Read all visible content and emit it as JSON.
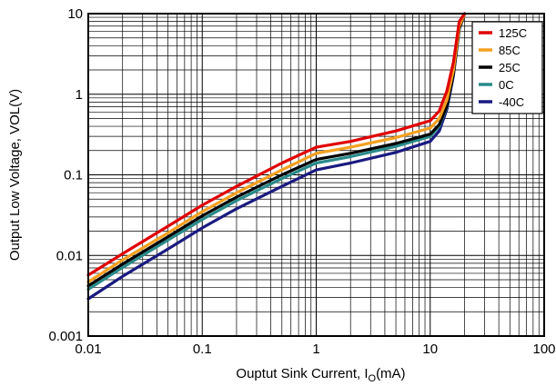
{
  "chart_data": {
    "type": "line",
    "title": "",
    "xlabel_prefix": "Ouptut Sink Current, I",
    "xlabel_sub": "O",
    "xlabel_suffix": "(mA)",
    "ylabel": "Output Low Voltage, VOL(V)",
    "x_scale": "log",
    "y_scale": "log",
    "xlim": [
      0.01,
      100
    ],
    "ylim": [
      0.001,
      10
    ],
    "grid": true,
    "legend_position": "top-right",
    "x_tick_labels": [
      "0.01",
      "0.1",
      "1",
      "10",
      "100"
    ],
    "y_tick_labels": [
      "0.001",
      "0.01",
      "0.1",
      "1",
      "10"
    ],
    "series": [
      {
        "name": "125C",
        "color": "#e00000",
        "x": [
          0.01,
          0.02,
          0.05,
          0.1,
          0.2,
          0.5,
          1,
          2,
          5,
          10,
          12,
          14,
          16,
          18,
          20
        ],
        "y": [
          0.0057,
          0.0105,
          0.023,
          0.042,
          0.072,
          0.14,
          0.22,
          0.26,
          0.35,
          0.47,
          0.62,
          1.1,
          2.5,
          8,
          11
        ]
      },
      {
        "name": "85C",
        "color": "#f5a020",
        "x": [
          0.01,
          0.02,
          0.05,
          0.1,
          0.2,
          0.5,
          1,
          2,
          5,
          10,
          12,
          14,
          16,
          18,
          20
        ],
        "y": [
          0.0047,
          0.0088,
          0.019,
          0.035,
          0.06,
          0.115,
          0.185,
          0.22,
          0.29,
          0.38,
          0.5,
          0.85,
          2,
          7,
          11
        ]
      },
      {
        "name": "25C",
        "color": "#000000",
        "x": [
          0.01,
          0.02,
          0.05,
          0.1,
          0.2,
          0.5,
          1,
          2,
          5,
          10,
          12,
          14,
          16,
          18,
          20
        ],
        "y": [
          0.0042,
          0.0078,
          0.017,
          0.031,
          0.053,
          0.1,
          0.155,
          0.185,
          0.245,
          0.32,
          0.42,
          0.72,
          1.8,
          6.5,
          11
        ]
      },
      {
        "name": "0C",
        "color": "#2a8a8a",
        "x": [
          0.01,
          0.02,
          0.05,
          0.1,
          0.2,
          0.5,
          1,
          2,
          5,
          10,
          12,
          14,
          16,
          18,
          20
        ],
        "y": [
          0.0038,
          0.0071,
          0.0155,
          0.028,
          0.048,
          0.09,
          0.14,
          0.168,
          0.225,
          0.3,
          0.4,
          0.7,
          1.8,
          6.5,
          11
        ]
      },
      {
        "name": "-40C",
        "color": "#1a1a80",
        "x": [
          0.01,
          0.02,
          0.05,
          0.1,
          0.2,
          0.5,
          1,
          2,
          5,
          10,
          12,
          14,
          16,
          18,
          20
        ],
        "y": [
          0.0029,
          0.0055,
          0.012,
          0.022,
          0.038,
          0.072,
          0.115,
          0.14,
          0.19,
          0.26,
          0.35,
          0.65,
          1.7,
          6.5,
          11
        ]
      }
    ]
  }
}
